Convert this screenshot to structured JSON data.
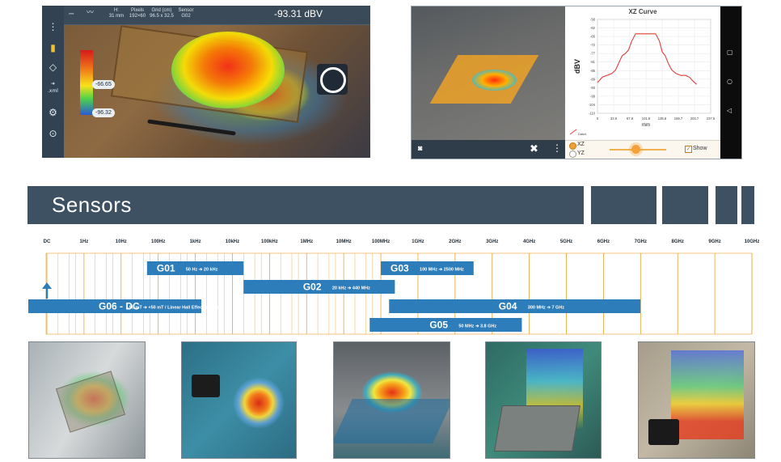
{
  "ar_app": {
    "header": {
      "f_label": "H:",
      "f_value": "31 mm",
      "pixels_label": "Pixels",
      "pixels_value": "192×60",
      "grid_label": "Grid (cm)",
      "grid_value": "96.5 x 32.5",
      "sensor_label": "Sensor",
      "sensor_value": "G02",
      "readout": "-93.31 dBV"
    },
    "scale": {
      "max_label": "-66.65",
      "min_label": "-96.32"
    },
    "sidebar_export_label": ".xml"
  },
  "curve_app": {
    "chart_data": {
      "type": "line",
      "title": "XZ Curve",
      "xlabel": "mm",
      "ylabel": "dBV",
      "x_ticks": [
        "0",
        "33.9",
        "67.9",
        "101.8",
        "135.8",
        "169.7",
        "203.7",
        "237.6"
      ],
      "y_ticks": [
        "-58",
        "-62",
        "-66",
        "-72",
        "-77",
        "-81",
        "-85",
        "-89",
        "-93",
        "-99",
        "-104",
        "-110"
      ],
      "ylim": [
        -110,
        -58
      ],
      "xlim": [
        0,
        237.6
      ],
      "series": [
        {
          "name": "Data1",
          "x": [
            0,
            10,
            20,
            30,
            38,
            45,
            52,
            58,
            65,
            72,
            80,
            90,
            101.8,
            112,
            122,
            130,
            136,
            142,
            148,
            156,
            165,
            175,
            185,
            193,
            200,
            208
          ],
          "y": [
            -93,
            -90,
            -89,
            -88,
            -86,
            -82,
            -78,
            -77,
            -75,
            -70,
            -66,
            -66,
            -66,
            -66,
            -66,
            -70,
            -76,
            -78,
            -82,
            -86,
            -88,
            -89,
            -89,
            -90,
            -92,
            -94
          ]
        }
      ],
      "legend": "bottom-left"
    },
    "controls": {
      "option_xz": "XZ",
      "option_yz": "YZ",
      "show_label": "Show"
    }
  },
  "section": {
    "title": "Sensors"
  },
  "freq_chart": {
    "ticks": [
      "DC",
      "1Hz",
      "10Hz",
      "100Hz",
      "1kHz",
      "10kHz",
      "100kHz",
      "1MHz",
      "10MHz",
      "100MHz",
      "1GHz",
      "2GHz",
      "3GHz",
      "4GHz",
      "5GHz",
      "6GHz",
      "7GHz",
      "8GHz",
      "9GHz",
      "10GHz"
    ],
    "sensors": [
      {
        "name": "G01",
        "range": "50 Hz ➔ 20 kHz",
        "color": "#2d7dbb"
      },
      {
        "name": "G02",
        "range": "20 kHz ➔ 440 MHz",
        "color": "#2d7dbb"
      },
      {
        "name": "G03",
        "range": "100 MHz ➔ 2500 MHz",
        "color": "#2d7dbb"
      },
      {
        "name": "G04",
        "range": "300 MHz ➔ 7 GHz",
        "color": "#2d7dbb"
      },
      {
        "name": "G05",
        "range": "50 MHz ➔ 3.8 GHz",
        "color": "#2d7dbb"
      },
      {
        "name": "G06 - DC",
        "range": "-50 mT  ➔  +50 mT  /  Linear Hall Effect Sensor",
        "color": "#2d7dbb"
      }
    ],
    "gridline_color": "#f0a030"
  },
  "photos": [
    "pcb-scan-photo",
    "antenna-sphere-photo",
    "patch-dome-photo",
    "board-volume-photo",
    "module-volume-photo"
  ]
}
